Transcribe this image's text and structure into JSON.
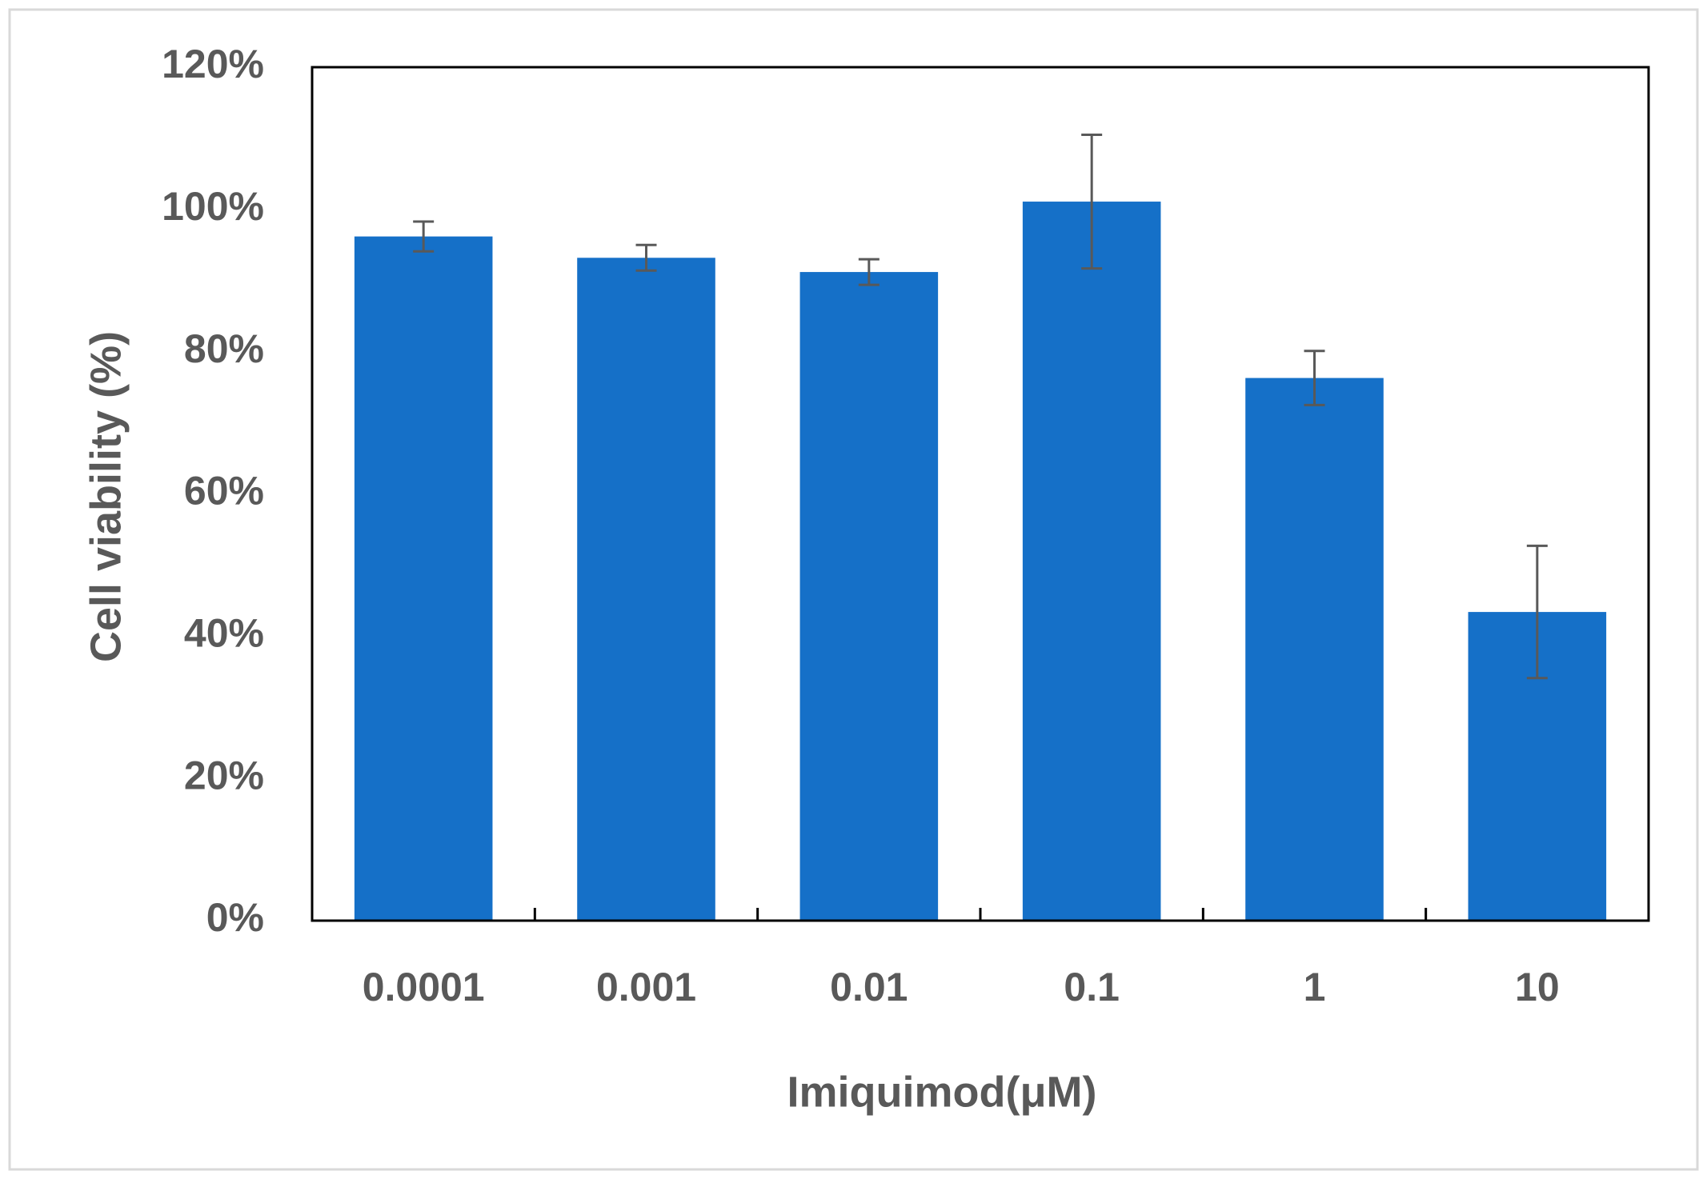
{
  "chart_data": {
    "type": "bar",
    "x_label": "Imiquimod(μM)",
    "y_label": "Cell viability (%)",
    "categories": [
      "0.0001",
      "0.001",
      "0.01",
      "0.1",
      "1",
      "10"
    ],
    "values": [
      96.2,
      93.2,
      91.2,
      101.1,
      76.3,
      43.4
    ],
    "errors": [
      2.1,
      1.8,
      1.8,
      9.4,
      3.8,
      9.3
    ],
    "color": "#1570c8",
    "error_color": "#595959",
    "ylim": [
      0,
      120
    ],
    "yticks": [
      {
        "value": 0,
        "label": "0%"
      },
      {
        "value": 20,
        "label": "20%"
      },
      {
        "value": 40,
        "label": "40%"
      },
      {
        "value": 60,
        "label": "60%"
      },
      {
        "value": 80,
        "label": "80%"
      },
      {
        "value": 100,
        "label": "100%"
      },
      {
        "value": 120,
        "label": "120%"
      }
    ],
    "grid": false
  }
}
